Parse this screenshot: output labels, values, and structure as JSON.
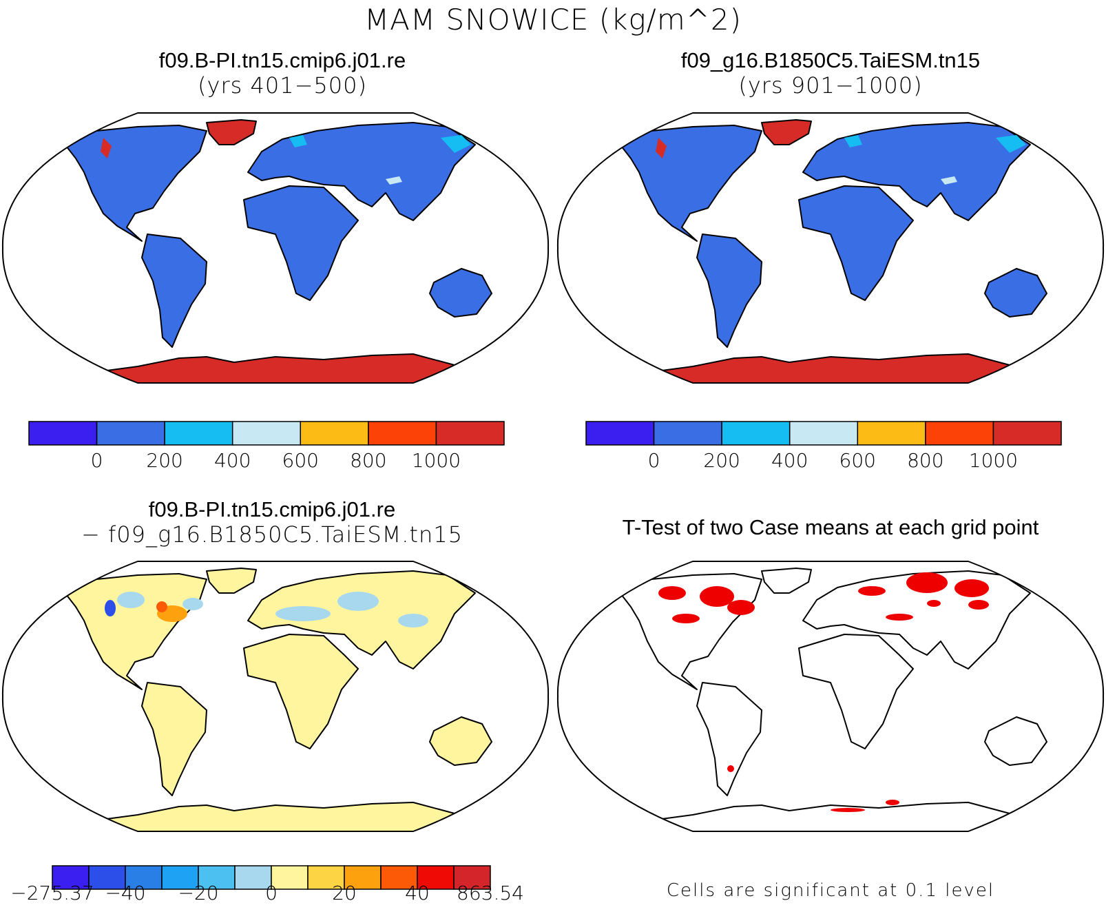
{
  "figure": {
    "title": "MAM SNOWICE (kg/m^2)"
  },
  "panels": [
    {
      "title_line1": "f09.B-PI.tn15.cmip6.j01.re",
      "title_line2": "(yrs 401−500)",
      "colorbar": {
        "colors": [
          "#3b1ff0",
          "#3a6ee4",
          "#16bdf2",
          "#c8e8f4",
          "#fdbb16",
          "#fd4207",
          "#d62b27"
        ],
        "tick_labels": [
          "0",
          "200",
          "400",
          "600",
          "800",
          "1000"
        ]
      }
    },
    {
      "title_line1": "f09_g16.B1850C5.TaiESM.tn15",
      "title_line2": "(yrs 901−1000)",
      "colorbar": {
        "colors": [
          "#3b1ff0",
          "#3a6ee4",
          "#16bdf2",
          "#c8e8f4",
          "#fdbb16",
          "#fd4207",
          "#d62b27"
        ],
        "tick_labels": [
          "0",
          "200",
          "400",
          "600",
          "800",
          "1000"
        ]
      }
    },
    {
      "title_line1": "f09.B-PI.tn15.cmip6.j01.re",
      "title_line2": "− f09_g16.B1850C5.TaiESM.tn15",
      "colorbar": {
        "colors": [
          "#3b1ff0",
          "#2b4fe8",
          "#2a7fe6",
          "#1ea2f4",
          "#4dc0f2",
          "#a8d8ee",
          "#fff59e",
          "#fdd544",
          "#fda20e",
          "#fd5a07",
          "#f00a06",
          "#d4262a"
        ],
        "tick_labels": [
          "−275.37",
          "−40",
          "−20",
          "0",
          "20",
          "40",
          "863.54"
        ]
      }
    },
    {
      "title_line1": "T-Test of two Case means at each grid point",
      "note": "Cells are significant at 0.1 level"
    }
  ]
}
